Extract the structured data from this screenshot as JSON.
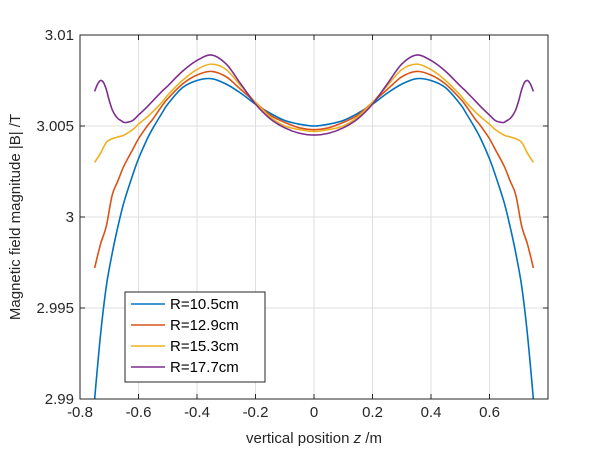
{
  "chart_data": {
    "type": "line",
    "title": "",
    "xlabel_prefix": "vertical position ",
    "xlabel_var": "z",
    "xlabel_unit": " /m",
    "ylabel": "Magnetic field magnitude |B| /T",
    "xlim": [
      -0.8,
      0.8
    ],
    "ylim": [
      2.99,
      3.01
    ],
    "xticks": [
      -0.8,
      -0.6,
      -0.4,
      -0.2,
      0,
      0.2,
      0.4,
      0.6
    ],
    "xtick_labels": [
      "-0.8",
      "-0.6",
      "-0.4",
      "-0.2",
      "0",
      "0.2",
      "0.4",
      "0.6"
    ],
    "yticks": [
      2.99,
      2.995,
      3.0,
      3.005,
      3.01
    ],
    "ytick_labels": [
      "2.99",
      "2.995",
      "3",
      "3.005",
      "3.01"
    ],
    "grid": true,
    "legend_position": "bottom-left",
    "series": [
      {
        "name": "R=10.5cm",
        "color": "#0072BD",
        "x": [
          -0.75,
          -0.73,
          -0.71,
          -0.69,
          -0.67,
          -0.65,
          -0.62,
          -0.6,
          -0.57,
          -0.55,
          -0.52,
          -0.5,
          -0.45,
          -0.4,
          -0.35,
          -0.3,
          -0.25,
          -0.2,
          -0.15,
          -0.1,
          -0.05,
          0,
          0.05,
          0.1,
          0.15,
          0.2,
          0.25,
          0.3,
          0.35,
          0.4,
          0.45,
          0.5,
          0.52,
          0.55,
          0.57,
          0.6,
          0.62,
          0.65,
          0.67,
          0.69,
          0.71,
          0.73,
          0.75
        ],
        "y": [
          2.99,
          2.9935,
          2.9962,
          2.998,
          2.9995,
          3.0008,
          3.0023,
          3.0032,
          3.0043,
          3.0049,
          3.0057,
          3.0062,
          3.0071,
          3.0075,
          3.0076,
          3.0073,
          3.0068,
          3.0062,
          3.0057,
          3.0053,
          3.0051,
          3.005,
          3.0051,
          3.0053,
          3.0057,
          3.0062,
          3.0068,
          3.0073,
          3.0076,
          3.0075,
          3.0071,
          3.0062,
          3.0057,
          3.0049,
          3.0043,
          3.0032,
          3.0023,
          3.0008,
          2.9995,
          2.998,
          2.9962,
          2.9935,
          2.99
        ]
      },
      {
        "name": "R=12.9cm",
        "color": "#D95319",
        "x": [
          -0.75,
          -0.73,
          -0.71,
          -0.69,
          -0.67,
          -0.65,
          -0.62,
          -0.6,
          -0.57,
          -0.55,
          -0.52,
          -0.5,
          -0.45,
          -0.4,
          -0.35,
          -0.3,
          -0.25,
          -0.2,
          -0.15,
          -0.1,
          -0.05,
          0,
          0.05,
          0.1,
          0.15,
          0.2,
          0.25,
          0.3,
          0.35,
          0.4,
          0.45,
          0.5,
          0.52,
          0.55,
          0.57,
          0.6,
          0.62,
          0.65,
          0.67,
          0.69,
          0.71,
          0.73,
          0.75
        ],
        "y": [
          2.9972,
          2.9985,
          2.9995,
          3.0012,
          3.002,
          3.0028,
          3.0037,
          3.0043,
          3.005,
          3.0054,
          3.0061,
          3.0065,
          3.0073,
          3.0078,
          3.008,
          3.0077,
          3.007,
          3.0063,
          3.0056,
          3.0052,
          3.0049,
          3.0048,
          3.0049,
          3.0052,
          3.0056,
          3.0063,
          3.007,
          3.0077,
          3.008,
          3.0078,
          3.0073,
          3.0065,
          3.0061,
          3.0054,
          3.005,
          3.0043,
          3.0037,
          3.0028,
          3.002,
          3.0012,
          2.9995,
          2.9985,
          2.9972
        ]
      },
      {
        "name": "R=15.3cm",
        "color": "#EDB120",
        "x": [
          -0.75,
          -0.73,
          -0.71,
          -0.69,
          -0.67,
          -0.65,
          -0.62,
          -0.6,
          -0.57,
          -0.55,
          -0.52,
          -0.5,
          -0.45,
          -0.4,
          -0.35,
          -0.3,
          -0.25,
          -0.2,
          -0.15,
          -0.1,
          -0.05,
          0,
          0.05,
          0.1,
          0.15,
          0.2,
          0.25,
          0.3,
          0.35,
          0.4,
          0.45,
          0.5,
          0.52,
          0.55,
          0.57,
          0.6,
          0.62,
          0.65,
          0.67,
          0.69,
          0.71,
          0.73,
          0.75
        ],
        "y": [
          3.003,
          3.0035,
          3.0041,
          3.0043,
          3.0044,
          3.0045,
          3.0048,
          3.0051,
          3.0055,
          3.0058,
          3.0063,
          3.0067,
          3.0075,
          3.0081,
          3.0084,
          3.0081,
          3.0072,
          3.0063,
          3.0055,
          3.005,
          3.0048,
          3.0047,
          3.0048,
          3.005,
          3.0055,
          3.0063,
          3.0072,
          3.0081,
          3.0084,
          3.0081,
          3.0075,
          3.0067,
          3.0063,
          3.0058,
          3.0055,
          3.0051,
          3.0048,
          3.0045,
          3.0044,
          3.0043,
          3.0041,
          3.0035,
          3.003
        ]
      },
      {
        "name": "R=17.7cm",
        "color": "#7E2F8E",
        "x": [
          -0.75,
          -0.74,
          -0.73,
          -0.72,
          -0.71,
          -0.7,
          -0.69,
          -0.68,
          -0.67,
          -0.66,
          -0.65,
          -0.64,
          -0.62,
          -0.6,
          -0.58,
          -0.55,
          -0.52,
          -0.5,
          -0.45,
          -0.4,
          -0.35,
          -0.3,
          -0.25,
          -0.2,
          -0.15,
          -0.1,
          -0.05,
          0,
          0.05,
          0.1,
          0.15,
          0.2,
          0.25,
          0.3,
          0.35,
          0.4,
          0.45,
          0.5,
          0.52,
          0.55,
          0.58,
          0.6,
          0.62,
          0.64,
          0.65,
          0.66,
          0.67,
          0.68,
          0.69,
          0.7,
          0.71,
          0.72,
          0.73,
          0.74,
          0.75
        ],
        "y": [
          3.0069,
          3.0073,
          3.0075,
          3.0074,
          3.007,
          3.0064,
          3.0059,
          3.0056,
          3.0054,
          3.0053,
          3.0052,
          3.0052,
          3.0053,
          3.0056,
          3.0059,
          3.0064,
          3.0069,
          3.0072,
          3.008,
          3.0086,
          3.0089,
          3.0084,
          3.0073,
          3.0062,
          3.0054,
          3.0049,
          3.0046,
          3.0045,
          3.0046,
          3.0049,
          3.0054,
          3.0062,
          3.0073,
          3.0084,
          3.0089,
          3.0086,
          3.008,
          3.0072,
          3.0069,
          3.0064,
          3.0059,
          3.0056,
          3.0053,
          3.0052,
          3.0052,
          3.0053,
          3.0054,
          3.0056,
          3.0059,
          3.0064,
          3.007,
          3.0074,
          3.0075,
          3.0073,
          3.0069
        ]
      }
    ]
  }
}
